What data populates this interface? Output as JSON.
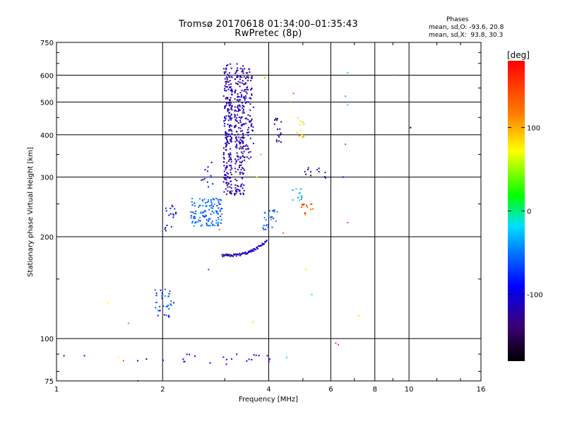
{
  "header": {
    "title": "Tromsø 20170618 01:34:00–01:35:43",
    "subtitle": "RwPretec (8p)",
    "stats_heading": "Phases",
    "stats_o": "mean, sd,O: -93.6, 20.8",
    "stats_x": "mean, sd,X:  93.8, 30.3"
  },
  "colorbar": {
    "unit_label": "[deg]",
    "ticks": [
      "100",
      "0",
      "-100"
    ],
    "range": [
      -180,
      180
    ]
  },
  "chart_data": {
    "type": "scatter",
    "xlabel": "Frequency [MHz]",
    "ylabel": "Stationary phase Virtual Height [km]",
    "x_scale": "log",
    "y_scale": "log",
    "xlim": [
      1,
      16
    ],
    "ylim": [
      75,
      750
    ],
    "x_ticks": [
      1,
      2,
      4,
      6,
      8,
      10,
      16
    ],
    "y_ticks": [
      75,
      100,
      200,
      300,
      400,
      500,
      600,
      750
    ],
    "grid": true,
    "color_variable": "phase (deg)",
    "clusters": [
      {
        "f_range": [
          2.98,
          3.15
        ],
        "h_range": [
          265,
          650
        ],
        "n": 220,
        "phase": [
          -140,
          -95
        ]
      },
      {
        "f_range": [
          3.2,
          3.42
        ],
        "h_range": [
          265,
          650
        ],
        "n": 220,
        "phase": [
          -140,
          -95
        ]
      },
      {
        "f_range": [
          3.42,
          3.62
        ],
        "h_range": [
          340,
          630
        ],
        "n": 80,
        "phase": [
          -135,
          -100
        ]
      },
      {
        "f_range": [
          2.4,
          2.95
        ],
        "h_range": [
          215,
          260
        ],
        "n": 120,
        "phase": [
          -80,
          -30
        ]
      },
      {
        "f_range": [
          2.03,
          2.2
        ],
        "h_range": [
          205,
          250
        ],
        "n": 18,
        "phase": [
          -110,
          -70
        ]
      },
      {
        "f_range": [
          2.55,
          2.8
        ],
        "h_range": [
          280,
          340
        ],
        "n": 12,
        "phase": [
          -110,
          -60
        ]
      },
      {
        "f_range": [
          1.9,
          2.15
        ],
        "h_range": [
          115,
          140
        ],
        "n": 35,
        "phase": [
          -100,
          -40
        ]
      },
      {
        "f_range": [
          3.85,
          4.25
        ],
        "h_range": [
          210,
          240
        ],
        "n": 25,
        "phase": [
          -80,
          -40
        ]
      },
      {
        "f_range": [
          4.15,
          4.35
        ],
        "h_range": [
          380,
          450
        ],
        "n": 18,
        "phase": [
          -140,
          -110
        ]
      },
      {
        "f_range": [
          4.8,
          5.05
        ],
        "h_range": [
          390,
          450
        ],
        "n": 14,
        "phase": [
          60,
          110
        ]
      },
      {
        "f_range": [
          4.65,
          5.05
        ],
        "h_range": [
          255,
          280
        ],
        "n": 12,
        "phase": [
          -60,
          -10
        ]
      },
      {
        "f_range": [
          4.95,
          5.35
        ],
        "h_range": [
          230,
          250
        ],
        "n": 14,
        "phase": [
          120,
          160
        ]
      },
      {
        "f_range": [
          5.0,
          5.8
        ],
        "h_range": [
          295,
          325
        ],
        "n": 12,
        "phase": [
          -150,
          -110
        ]
      },
      {
        "f_range": [
          1.9,
          4.1
        ],
        "h_range": [
          84,
          90
        ],
        "n": 22,
        "phase": [
          -120,
          -80
        ]
      }
    ],
    "arc": {
      "f_range": [
        2.95,
        3.95
      ],
      "h_start": 176,
      "h_end": 195,
      "n": 70,
      "phase": [
        -130,
        -100
      ]
    },
    "points": [
      {
        "f": 1.05,
        "h": 89,
        "phase": -120
      },
      {
        "f": 1.2,
        "h": 89,
        "phase": -110
      },
      {
        "f": 1.5,
        "h": 88,
        "phase": 70
      },
      {
        "f": 1.55,
        "h": 86,
        "phase": 140
      },
      {
        "f": 1.7,
        "h": 86,
        "phase": -100
      },
      {
        "f": 1.8,
        "h": 87,
        "phase": -120
      },
      {
        "f": 1.7,
        "h": 75,
        "phase": 140
      },
      {
        "f": 1.4,
        "h": 127,
        "phase": 70
      },
      {
        "f": 1.6,
        "h": 111,
        "phase": 120
      },
      {
        "f": 3.6,
        "h": 112,
        "phase": 60
      },
      {
        "f": 5.1,
        "h": 160,
        "phase": 80
      },
      {
        "f": 5.3,
        "h": 135,
        "phase": -10
      },
      {
        "f": 4.5,
        "h": 88,
        "phase": -20
      },
      {
        "f": 6.2,
        "h": 97,
        "phase": 160
      },
      {
        "f": 6.3,
        "h": 96,
        "phase": 160
      },
      {
        "f": 6.7,
        "h": 220,
        "phase": 140
      },
      {
        "f": 6.7,
        "h": 610,
        "phase": -20
      },
      {
        "f": 6.6,
        "h": 520,
        "phase": -30
      },
      {
        "f": 6.7,
        "h": 490,
        "phase": -20
      },
      {
        "f": 6.6,
        "h": 375,
        "phase": -40
      },
      {
        "f": 6.5,
        "h": 300,
        "phase": -100
      },
      {
        "f": 7.2,
        "h": 117,
        "phase": 80
      },
      {
        "f": 9.0,
        "h": 600,
        "phase": -40
      },
      {
        "f": 10.1,
        "h": 420,
        "phase": -180
      },
      {
        "f": 4.7,
        "h": 530,
        "phase": 140
      },
      {
        "f": 4.6,
        "h": 500,
        "phase": 120
      },
      {
        "f": 3.9,
        "h": 590,
        "phase": 100
      },
      {
        "f": 3.8,
        "h": 350,
        "phase": 30
      },
      {
        "f": 3.7,
        "h": 300,
        "phase": 80
      },
      {
        "f": 4.4,
        "h": 205,
        "phase": 130
      },
      {
        "f": 2.9,
        "h": 210,
        "phase": 130
      },
      {
        "f": 2.7,
        "h": 160,
        "phase": -60
      }
    ]
  }
}
